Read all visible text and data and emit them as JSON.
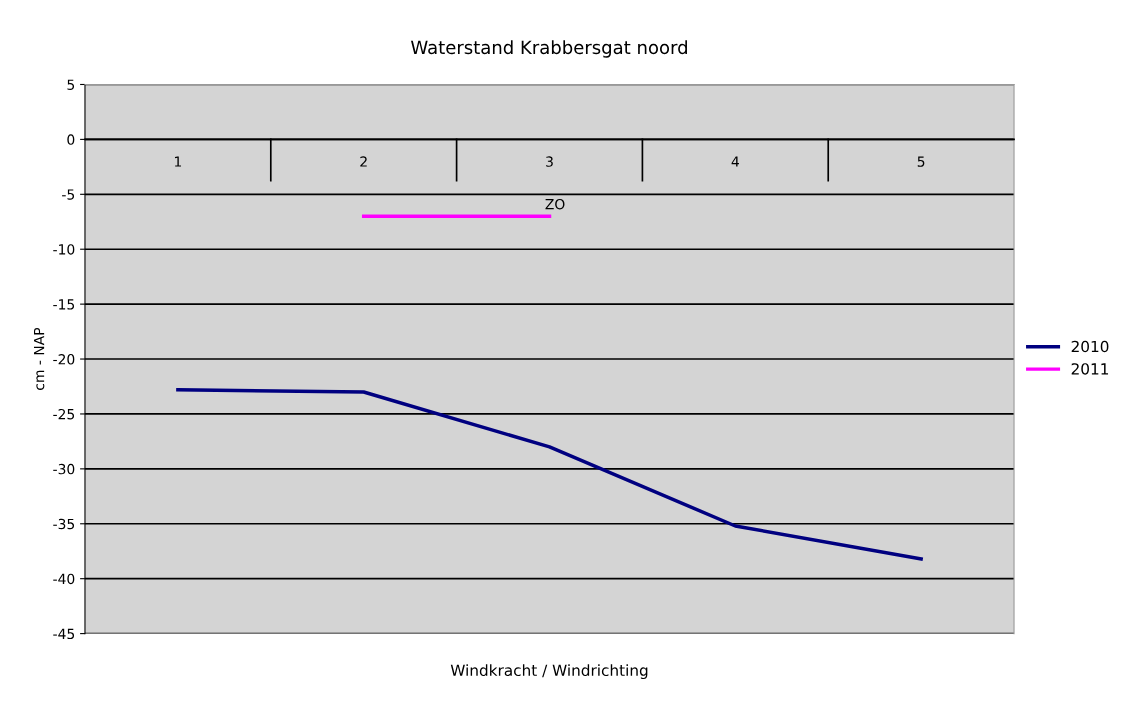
{
  "chart_data": {
    "type": "line",
    "title": "Waterstand Krabbersgat noord",
    "xlabel": "Windkracht / Windrichting",
    "ylabel": "cm - NAP",
    "categories": [
      "1",
      "2",
      "3",
      "4",
      "5"
    ],
    "series": [
      {
        "name": "2010",
        "color": "#000080",
        "values": [
          -22.8,
          -23,
          -28,
          -35.2,
          -38.2
        ]
      },
      {
        "name": "2011",
        "color": "#ff00ff",
        "values": [
          null,
          -7,
          -7,
          null,
          null
        ]
      }
    ],
    "annotations": [
      {
        "text": "ZO",
        "x": "3",
        "y": -7
      }
    ],
    "ylim": [
      -45,
      5
    ],
    "yticks": [
      -45,
      -40,
      -35,
      -30,
      -25,
      -20,
      -15,
      -10,
      -5,
      0,
      5
    ],
    "grid": "y",
    "legend": "right",
    "marker": "none",
    "line_style": "solid"
  }
}
